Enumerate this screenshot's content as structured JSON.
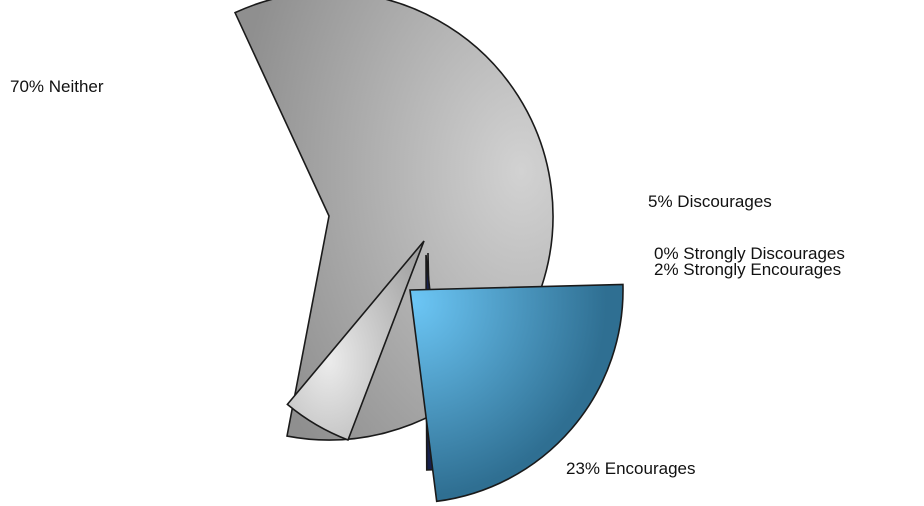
{
  "chart_data": {
    "type": "pie",
    "exploded": true,
    "slices": [
      {
        "label": "Neither",
        "value": 70,
        "color": "#8f8f8f",
        "highlight": "#d2d2d2",
        "display": "70% Neither"
      },
      {
        "label": "Discourages",
        "value": 5,
        "color": "#9a9a9a",
        "highlight": "#ececec",
        "display": "5% Discourages"
      },
      {
        "label": "Strongly Discourages",
        "value": 0,
        "color": "#6a6a6a",
        "highlight": "#bdbdbd",
        "display": "0% Strongly Discourages"
      },
      {
        "label": "Strongly Encourages",
        "value": 2,
        "color": "#0b1238",
        "highlight": "#2a3870",
        "display": "2% Strongly Encourages"
      },
      {
        "label": "Encourages",
        "value": 23,
        "color": "#2f6f92",
        "highlight": "#6cc6f5",
        "display": "23% Encourages"
      }
    ]
  }
}
